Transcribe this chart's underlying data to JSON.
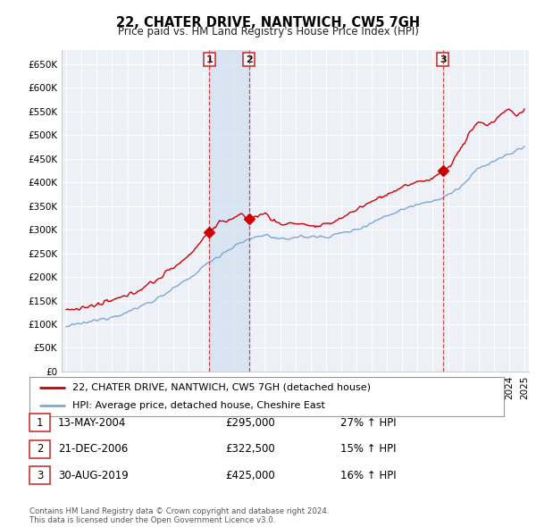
{
  "title": "22, CHATER DRIVE, NANTWICH, CW5 7GH",
  "subtitle": "Price paid vs. HM Land Registry's House Price Index (HPI)",
  "ylim": [
    0,
    680000
  ],
  "xlim_start": 1994.7,
  "xlim_end": 2025.3,
  "background_color": "#ffffff",
  "plot_bg_color": "#eef0f8",
  "grid_color": "#ffffff",
  "hpi_color": "#7fa8d0",
  "price_color": "#cc0000",
  "vline_color": "#cc3333",
  "shade_color": "#d0dff0",
  "purchases": [
    {
      "date_num": 2004.36,
      "price": 295000,
      "label": "1"
    },
    {
      "date_num": 2006.97,
      "price": 322500,
      "label": "2"
    },
    {
      "date_num": 2019.66,
      "price": 425000,
      "label": "3"
    }
  ],
  "legend_price_label": "22, CHATER DRIVE, NANTWICH, CW5 7GH (detached house)",
  "legend_hpi_label": "HPI: Average price, detached house, Cheshire East",
  "table_rows": [
    {
      "num": "1",
      "date": "13-MAY-2004",
      "price": "£295,000",
      "change": "27% ↑ HPI"
    },
    {
      "num": "2",
      "date": "21-DEC-2006",
      "price": "£322,500",
      "change": "15% ↑ HPI"
    },
    {
      "num": "3",
      "date": "30-AUG-2019",
      "price": "£425,000",
      "change": "16% ↑ HPI"
    }
  ],
  "footer": "Contains HM Land Registry data © Crown copyright and database right 2024.\nThis data is licensed under the Open Government Licence v3.0."
}
